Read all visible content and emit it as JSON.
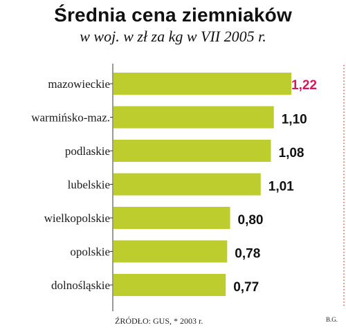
{
  "title": "Średnia cena ziemniaków",
  "subtitle": "w woj. w zł za kg w VII 2005 r.",
  "source": "ŹRÓDŁO: GUS, * 2003 r.",
  "signature": "B.G.",
  "colors": {
    "bar": "#bccd2d",
    "highlight_label": "#d2195f",
    "label": "#111111",
    "axis": "#333333",
    "frame_dots": "#d9534f"
  },
  "chart_data": {
    "type": "bar",
    "orientation": "horizontal",
    "title": "Średnia cena ziemniaków",
    "subtitle": "w woj. w zł za kg w VII 2005 r.",
    "categories": [
      "mazowieckie",
      "warmińsko-maz.",
      "podlaskie",
      "lubelskie",
      "wielkopolskie",
      "opolskie",
      "dolnośląskie"
    ],
    "values": [
      1.22,
      1.1,
      1.08,
      1.01,
      0.8,
      0.78,
      0.77
    ],
    "value_labels": [
      "1,22",
      "1,10",
      "1,08",
      "1,01",
      "0,80",
      "0,78",
      "0,77"
    ],
    "highlight_index": 0,
    "xlim": [
      0,
      1.22
    ],
    "grid": false,
    "legend": "none"
  }
}
